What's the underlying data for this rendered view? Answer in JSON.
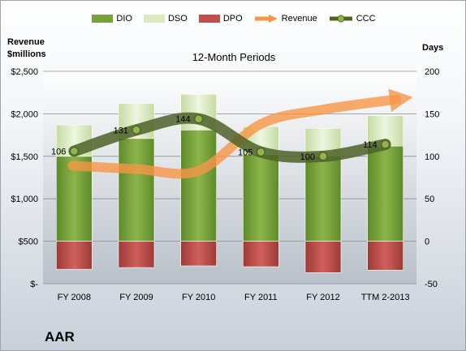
{
  "company": "AAR",
  "chart_data": {
    "type": "bar",
    "title": "12-Month Periods",
    "left_axis_title": [
      "Revenue",
      "$millions"
    ],
    "right_axis_title": "Days",
    "categories": [
      "FY 2008",
      "FY 2009",
      "FY 2010",
      "FY 2011",
      "FY 2012",
      "TTM 2-2013"
    ],
    "left_ticks": [
      "$-",
      "$500",
      "$1,000",
      "$1,500",
      "$2,000",
      "$2,500"
    ],
    "left_ylim": [
      0,
      2500
    ],
    "right_ticks": [
      "-50",
      "0",
      "50",
      "100",
      "150",
      "200"
    ],
    "right_ylim": [
      -50,
      200
    ],
    "series": [
      {
        "name": "DIO",
        "values": [
          100,
          121,
          131,
          102,
          100,
          112
        ],
        "color": "#77a13a"
      },
      {
        "name": "DSO",
        "values": [
          37,
          41,
          42,
          33,
          33,
          36
        ],
        "color": "#dbeac2"
      },
      {
        "name": "DPO",
        "values": [
          -33,
          -31,
          -29,
          -30,
          -37,
          -34
        ],
        "color": "#c0504d"
      },
      {
        "name": "Revenue",
        "values": [
          1390,
          1350,
          1330,
          1880,
          2050,
          2170
        ],
        "color": "#f79646"
      },
      {
        "name": "CCC",
        "values": [
          106,
          131,
          144,
          105,
          100,
          114
        ],
        "color": "#4f6228"
      }
    ],
    "data_labels": [
      "106",
      "131",
      "144",
      "105",
      "100",
      "114"
    ],
    "grid": true,
    "legend_position": "top"
  }
}
